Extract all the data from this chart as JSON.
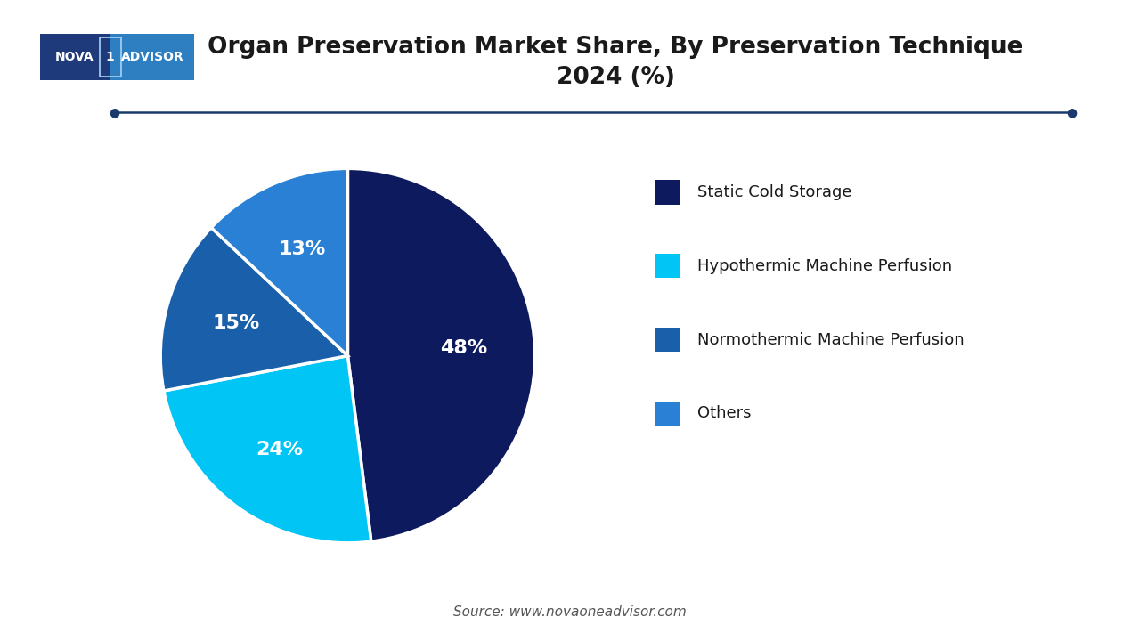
{
  "title": "Organ Preservation Market Share, By Preservation Technique\n2024 (%)",
  "slices": [
    48,
    24,
    15,
    13
  ],
  "labels": [
    "Static Cold Storage",
    "Hypothermic Machine Perfusion",
    "Normothermic Machine Perfusion",
    "Others"
  ],
  "colors": [
    "#0d1b5e",
    "#00c5f5",
    "#1a5faa",
    "#2980d4"
  ],
  "pct_labels": [
    "48%",
    "24%",
    "15%",
    "13%"
  ],
  "source_text": "Source: www.novaoneadvisor.com",
  "bg_color": "#ffffff",
  "title_color": "#1a1a1a",
  "legend_text_color": "#1a1a1a",
  "line_color": "#1a3a6b",
  "logo_bg_left": "#1e3a7a",
  "logo_bg_right": "#2e7ec2",
  "start_angle": 90
}
